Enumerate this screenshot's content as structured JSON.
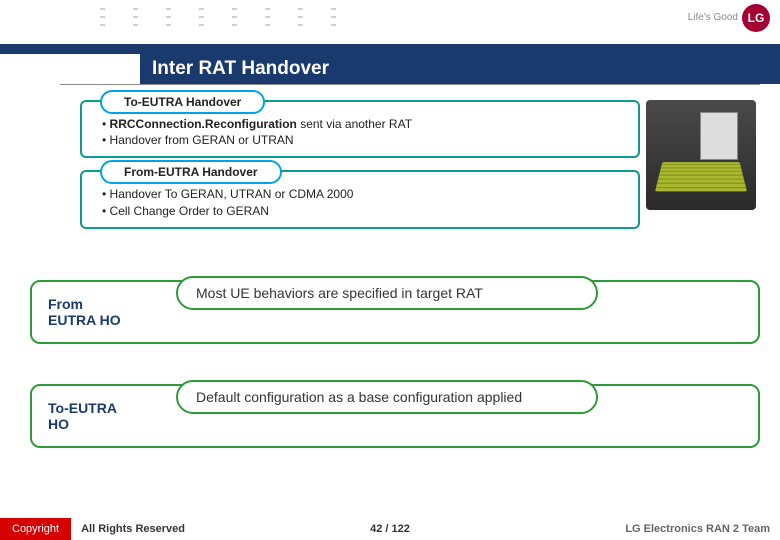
{
  "header": {
    "title": "Inter RAT Handover",
    "logo_text": "Life's Good",
    "logo_brand": "LG"
  },
  "sections": [
    {
      "label": "To-EUTRA Handover",
      "bullets": [
        {
          "prefix": "• ",
          "bold": "RRCConnection.Reconfiguration",
          "rest": " sent via another RAT"
        },
        {
          "prefix": "• ",
          "bold": "",
          "rest": "Handover from GERAN or UTRAN"
        }
      ]
    },
    {
      "label": "From-EUTRA Handover",
      "bullets": [
        {
          "prefix": "• ",
          "bold": "",
          "rest": "Handover To GERAN, UTRAN or CDMA 2000"
        },
        {
          "prefix": "• ",
          "bold": "",
          "rest": "Cell Change Order to GERAN"
        }
      ]
    }
  ],
  "wide_boxes": [
    {
      "label_line1": "From",
      "label_line2": "EUTRA HO",
      "pill_text": "Most UE behaviors are specified in target RAT"
    },
    {
      "label_line1": "To-EUTRA",
      "label_line2": "HO",
      "pill_text": "Default configuration as a base configuration applied"
    }
  ],
  "footer": {
    "copyright": "Copyright",
    "rights": "All Rights Reserved",
    "page_current": "42",
    "page_sep": " / ",
    "page_total": "122",
    "team": "LG Electronics RAN 2 Team"
  },
  "colors": {
    "brand_blue": "#1a3a6e",
    "accent_cyan": "#00a4e4",
    "accent_teal": "#0d9b8f",
    "accent_green": "#2e9b3a",
    "copyright_red": "#d60000",
    "logo_red": "#a50034"
  }
}
